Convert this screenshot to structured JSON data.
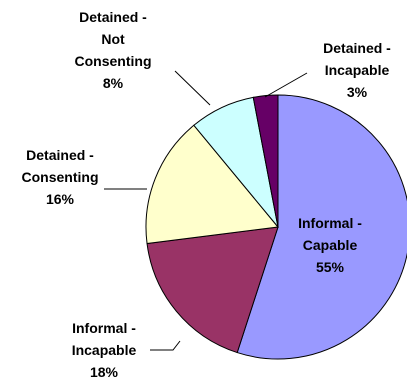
{
  "chart_data": {
    "type": "pie",
    "title": "",
    "direction": "clockwise",
    "start": "top",
    "slices": [
      {
        "label_lines": [
          "Informal -",
          "Capable"
        ],
        "label": "Informal - Capable",
        "value": 55,
        "value_text": "55%",
        "color": "#9999ff",
        "label_placement": "inside"
      },
      {
        "label_lines": [
          "Informal -",
          "Incapable"
        ],
        "label": "Informal - Incapable",
        "value": 18,
        "value_text": "18%",
        "color": "#993366",
        "label_placement": "outside"
      },
      {
        "label_lines": [
          "Detained -",
          "Consenting"
        ],
        "label": "Detained - Consenting",
        "value": 16,
        "value_text": "16%",
        "color": "#ffffcc",
        "label_placement": "outside"
      },
      {
        "label_lines": [
          "Detained -",
          "Not",
          "Consenting"
        ],
        "label": "Detained - Not Consenting",
        "value": 8,
        "value_text": "8%",
        "color": "#ccffff",
        "label_placement": "outside"
      },
      {
        "label_lines": [
          "Detained -",
          "Incapable"
        ],
        "label": "Detained - Incapable",
        "value": 3,
        "value_text": "3%",
        "color": "#660066",
        "label_placement": "outside"
      }
    ],
    "legend": "none",
    "border_color": "#000000"
  }
}
